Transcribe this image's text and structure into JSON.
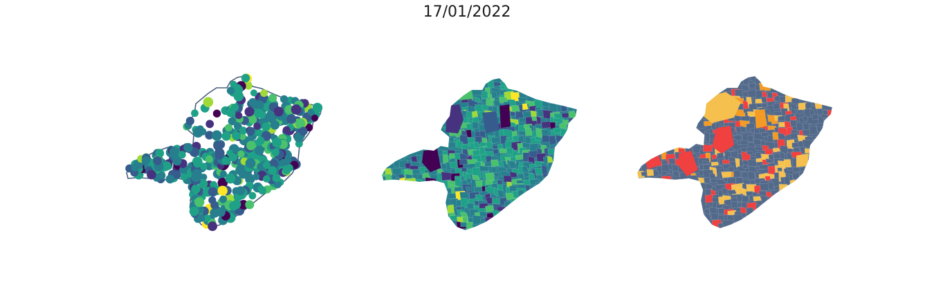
{
  "figure": {
    "title": "17/01/2022"
  },
  "colors": {
    "viridis": [
      "#440154",
      "#46327e",
      "#365c8d",
      "#277f8e",
      "#1fa187",
      "#4ac16d",
      "#a0da39",
      "#fde725"
    ],
    "outline": "#4a5f7e",
    "category_base": "#52698a",
    "category_yellow": "#f5c04e",
    "category_red": "#f0403f",
    "category_orange": "#f39b24"
  },
  "panels": [
    {
      "name": "points-map",
      "type": "scatter-on-outline"
    },
    {
      "name": "choropleth-viridis",
      "type": "choropleth"
    },
    {
      "name": "choropleth-categorical",
      "type": "choropleth-categorical"
    }
  ]
}
